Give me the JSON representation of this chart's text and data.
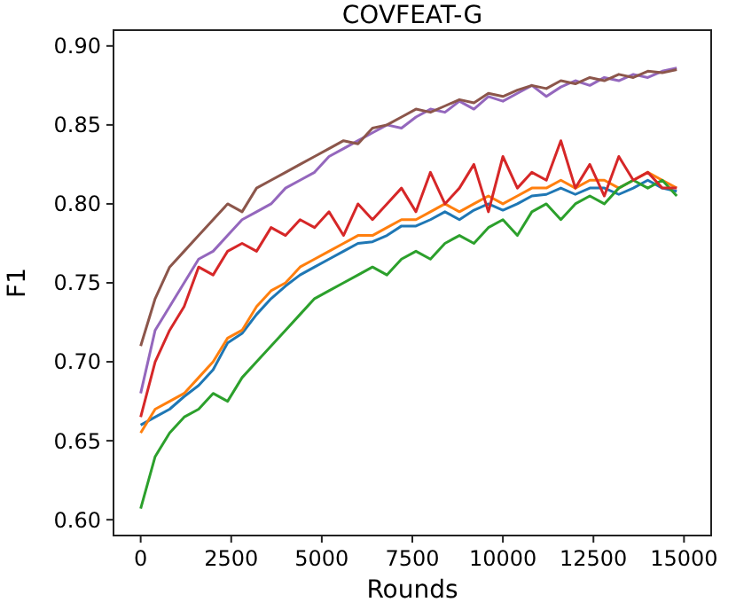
{
  "chart_data": {
    "type": "line",
    "title": "COVFEAT-G",
    "xlabel": "Rounds",
    "ylabel": "F1",
    "x": [
      0,
      400,
      800,
      1200,
      1600,
      2000,
      2400,
      2800,
      3200,
      3600,
      4000,
      4400,
      4800,
      5200,
      5600,
      6000,
      6400,
      6800,
      7200,
      7600,
      8000,
      8400,
      8800,
      9200,
      9600,
      10000,
      10400,
      10800,
      11200,
      11600,
      12000,
      12400,
      12800,
      13200,
      13600,
      14000,
      14400,
      14800
    ],
    "series": [
      {
        "color": "#1f77b4",
        "values": [
          0.66,
          0.665,
          0.67,
          0.678,
          0.685,
          0.695,
          0.712,
          0.718,
          0.73,
          0.74,
          0.748,
          0.755,
          0.76,
          0.765,
          0.77,
          0.775,
          0.776,
          0.78,
          0.786,
          0.786,
          0.79,
          0.795,
          0.79,
          0.796,
          0.8,
          0.796,
          0.8,
          0.805,
          0.806,
          0.81,
          0.806,
          0.81,
          0.81,
          0.806,
          0.81,
          0.815,
          0.81,
          0.808
        ]
      },
      {
        "color": "#ff7f0e",
        "values": [
          0.655,
          0.67,
          0.675,
          0.68,
          0.69,
          0.7,
          0.715,
          0.72,
          0.735,
          0.745,
          0.75,
          0.76,
          0.765,
          0.77,
          0.775,
          0.78,
          0.78,
          0.785,
          0.79,
          0.79,
          0.795,
          0.8,
          0.795,
          0.8,
          0.805,
          0.8,
          0.805,
          0.81,
          0.81,
          0.815,
          0.81,
          0.815,
          0.815,
          0.81,
          0.815,
          0.82,
          0.815,
          0.81
        ]
      },
      {
        "color": "#2ca02c",
        "values": [
          0.607,
          0.64,
          0.655,
          0.665,
          0.67,
          0.68,
          0.675,
          0.69,
          0.7,
          0.71,
          0.72,
          0.73,
          0.74,
          0.745,
          0.75,
          0.755,
          0.76,
          0.755,
          0.765,
          0.77,
          0.765,
          0.775,
          0.78,
          0.775,
          0.785,
          0.79,
          0.78,
          0.795,
          0.8,
          0.79,
          0.8,
          0.805,
          0.8,
          0.81,
          0.815,
          0.81,
          0.815,
          0.805
        ]
      },
      {
        "color": "#d62728",
        "values": [
          0.665,
          0.7,
          0.72,
          0.735,
          0.76,
          0.755,
          0.77,
          0.775,
          0.77,
          0.785,
          0.78,
          0.79,
          0.785,
          0.795,
          0.78,
          0.8,
          0.79,
          0.8,
          0.81,
          0.795,
          0.82,
          0.8,
          0.81,
          0.825,
          0.795,
          0.83,
          0.81,
          0.82,
          0.815,
          0.84,
          0.81,
          0.825,
          0.805,
          0.83,
          0.815,
          0.82,
          0.81,
          0.81
        ]
      },
      {
        "color": "#9467bd",
        "values": [
          0.68,
          0.72,
          0.735,
          0.75,
          0.765,
          0.77,
          0.78,
          0.79,
          0.795,
          0.8,
          0.81,
          0.815,
          0.82,
          0.83,
          0.835,
          0.84,
          0.845,
          0.85,
          0.848,
          0.855,
          0.86,
          0.858,
          0.865,
          0.86,
          0.868,
          0.865,
          0.87,
          0.875,
          0.868,
          0.874,
          0.878,
          0.875,
          0.88,
          0.878,
          0.882,
          0.88,
          0.884,
          0.886
        ]
      },
      {
        "color": "#8c564b",
        "values": [
          0.71,
          0.74,
          0.76,
          0.77,
          0.78,
          0.79,
          0.8,
          0.795,
          0.81,
          0.815,
          0.82,
          0.825,
          0.83,
          0.835,
          0.84,
          0.838,
          0.848,
          0.85,
          0.855,
          0.86,
          0.858,
          0.862,
          0.866,
          0.864,
          0.87,
          0.868,
          0.872,
          0.875,
          0.873,
          0.878,
          0.876,
          0.88,
          0.878,
          0.882,
          0.88,
          0.884,
          0.883,
          0.885
        ]
      }
    ],
    "xlim": [
      -750,
      15750
    ],
    "ylim": [
      0.59,
      0.91
    ],
    "xticks": [
      0,
      2500,
      5000,
      7500,
      10000,
      12500,
      15000
    ],
    "yticks": [
      {
        "value": 0.6,
        "label": "0.60"
      },
      {
        "value": 0.65,
        "label": "0.65"
      },
      {
        "value": 0.7,
        "label": "0.70"
      },
      {
        "value": 0.75,
        "label": "0.75"
      },
      {
        "value": 0.8,
        "label": "0.80"
      },
      {
        "value": 0.85,
        "label": "0.85"
      },
      {
        "value": 0.9,
        "label": "0.90"
      }
    ],
    "grid": false
  }
}
